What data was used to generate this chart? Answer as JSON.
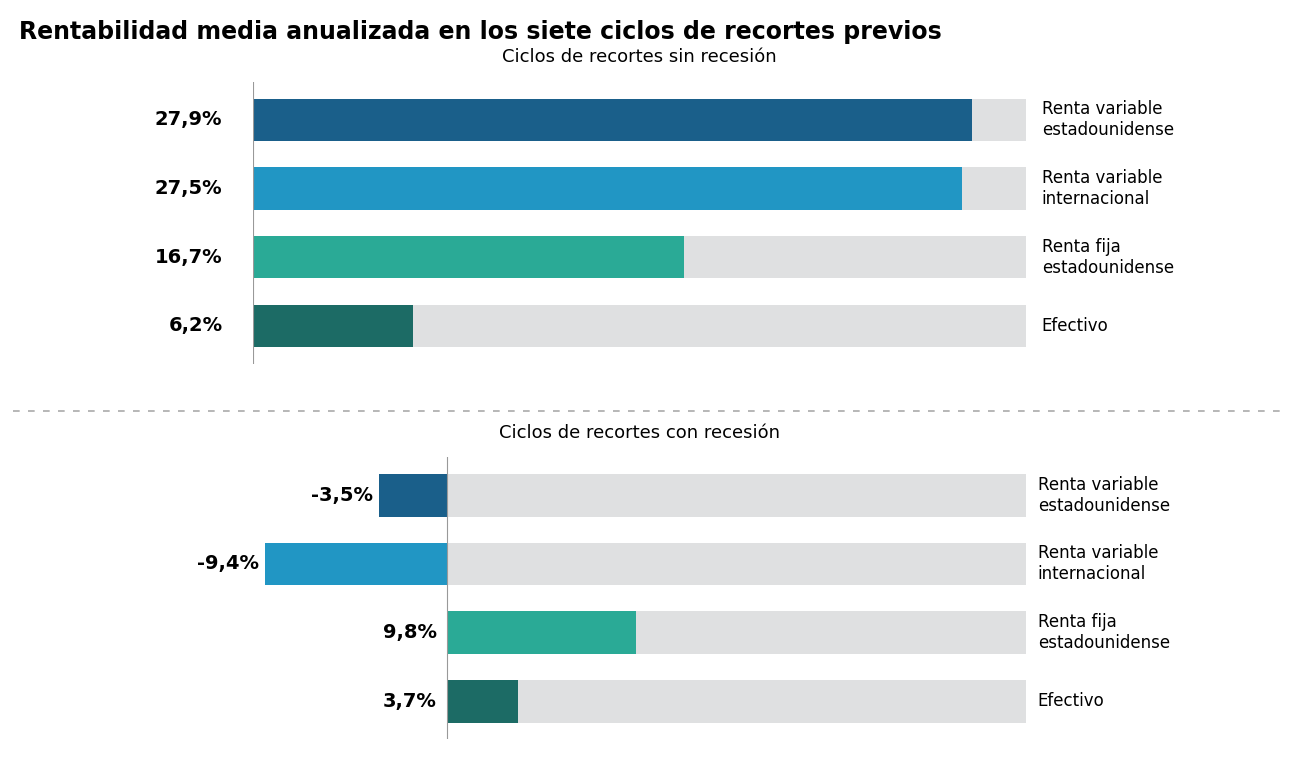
{
  "title": "Rentabilidad media anualizada en los siete ciclos de recortes previos",
  "title_fontsize": 17,
  "subtitle1": "Ciclos de recortes sin recesión",
  "subtitle2": "Ciclos de recortes con recesión",
  "subtitle_fontsize": 13,
  "labels": [
    "Renta variable\nestadounidense",
    "Renta variable\ninternacional",
    "Renta fija\nestadounidense",
    "Efectivo"
  ],
  "no_recession_values": [
    27.9,
    27.5,
    16.7,
    6.2
  ],
  "no_recession_labels": [
    "27,9%",
    "27,5%",
    "16,7%",
    "6,2%"
  ],
  "recession_values": [
    -3.5,
    -9.4,
    9.8,
    3.7
  ],
  "recession_labels": [
    "-3,5%",
    "-9,4%",
    "9,8%",
    "3,7%"
  ],
  "bar_colors": [
    "#1a5f8a",
    "#2196c4",
    "#2aaa96",
    "#1c6b65"
  ],
  "bg_color": "#dfe0e1",
  "max_range": 30.0,
  "min_range_no_recession": 0.0,
  "min_range_recession": -10.0,
  "value_label_fontsize": 14,
  "bar_label_fontsize": 12,
  "bar_height": 0.62,
  "background_color": "#ffffff"
}
